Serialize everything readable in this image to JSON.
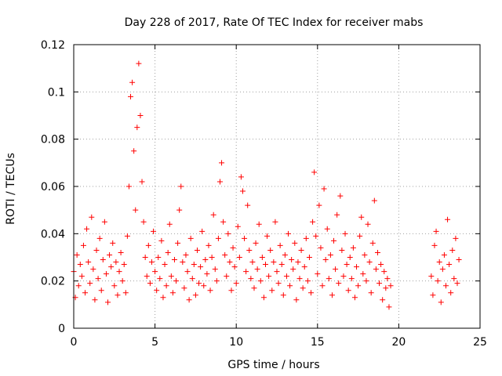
{
  "chart_data": {
    "type": "scatter",
    "title": "Day 228 of 2017, Rate Of TEC Index for receiver mabs",
    "xlabel": "GPS time / hours",
    "ylabel": "ROTI / TECUs",
    "xlim": [
      0,
      25
    ],
    "ylim": [
      0,
      0.12
    ],
    "xticks": [
      0,
      5,
      10,
      15,
      20,
      25
    ],
    "xtick_labels": [
      "0",
      "5",
      "10",
      "15",
      "20",
      "25"
    ],
    "yticks": [
      0,
      0.02,
      0.04,
      0.06,
      0.08,
      0.1,
      0.12
    ],
    "ytick_labels": [
      "0",
      "0.02",
      "0.04",
      "0.06",
      "0.08",
      "0.1",
      "0.12"
    ],
    "grid": true,
    "marker": "+",
    "color": "#ff0000",
    "series": [
      {
        "points": [
          [
            0.0,
            0.024
          ],
          [
            0.1,
            0.013
          ],
          [
            0.2,
            0.031
          ],
          [
            0.3,
            0.018
          ],
          [
            0.4,
            0.027
          ],
          [
            0.5,
            0.022
          ],
          [
            0.6,
            0.035
          ],
          [
            0.7,
            0.015
          ],
          [
            0.8,
            0.042
          ],
          [
            0.9,
            0.028
          ],
          [
            1.0,
            0.019
          ],
          [
            1.1,
            0.047
          ],
          [
            1.2,
            0.025
          ],
          [
            1.3,
            0.012
          ],
          [
            1.4,
            0.033
          ],
          [
            1.5,
            0.021
          ],
          [
            1.6,
            0.038
          ],
          [
            1.7,
            0.016
          ],
          [
            1.8,
            0.029
          ],
          [
            1.9,
            0.045
          ],
          [
            2.0,
            0.023
          ],
          [
            2.1,
            0.011
          ],
          [
            2.2,
            0.031
          ],
          [
            2.3,
            0.026
          ],
          [
            2.4,
            0.036
          ],
          [
            2.5,
            0.018
          ],
          [
            2.6,
            0.028
          ],
          [
            2.7,
            0.014
          ],
          [
            2.8,
            0.024
          ],
          [
            2.9,
            0.032
          ],
          [
            3.0,
            0.02
          ],
          [
            3.1,
            0.027
          ],
          [
            3.2,
            0.015
          ],
          [
            3.3,
            0.039
          ],
          [
            3.4,
            0.06
          ],
          [
            3.5,
            0.098
          ],
          [
            3.6,
            0.104
          ],
          [
            3.7,
            0.075
          ],
          [
            3.8,
            0.05
          ],
          [
            3.9,
            0.085
          ],
          [
            4.0,
            0.112
          ],
          [
            4.1,
            0.09
          ],
          [
            4.2,
            0.062
          ],
          [
            4.3,
            0.045
          ],
          [
            4.4,
            0.03
          ],
          [
            4.5,
            0.022
          ],
          [
            4.6,
            0.035
          ],
          [
            4.7,
            0.019
          ],
          [
            4.8,
            0.028
          ],
          [
            4.9,
            0.041
          ],
          [
            5.0,
            0.024
          ],
          [
            5.1,
            0.016
          ],
          [
            5.2,
            0.03
          ],
          [
            5.3,
            0.021
          ],
          [
            5.4,
            0.037
          ],
          [
            5.5,
            0.013
          ],
          [
            5.6,
            0.027
          ],
          [
            5.7,
            0.018
          ],
          [
            5.8,
            0.032
          ],
          [
            5.9,
            0.044
          ],
          [
            6.0,
            0.022
          ],
          [
            6.1,
            0.015
          ],
          [
            6.2,
            0.029
          ],
          [
            6.3,
            0.02
          ],
          [
            6.4,
            0.036
          ],
          [
            6.5,
            0.05
          ],
          [
            6.6,
            0.06
          ],
          [
            6.7,
            0.028
          ],
          [
            6.8,
            0.017
          ],
          [
            6.9,
            0.031
          ],
          [
            7.0,
            0.024
          ],
          [
            7.1,
            0.012
          ],
          [
            7.2,
            0.038
          ],
          [
            7.3,
            0.021
          ],
          [
            7.4,
            0.027
          ],
          [
            7.5,
            0.014
          ],
          [
            7.6,
            0.033
          ],
          [
            7.7,
            0.019
          ],
          [
            7.8,
            0.026
          ],
          [
            7.9,
            0.041
          ],
          [
            8.0,
            0.018
          ],
          [
            8.1,
            0.029
          ],
          [
            8.2,
            0.023
          ],
          [
            8.3,
            0.035
          ],
          [
            8.4,
            0.016
          ],
          [
            8.5,
            0.03
          ],
          [
            8.6,
            0.048
          ],
          [
            8.7,
            0.025
          ],
          [
            8.8,
            0.02
          ],
          [
            8.9,
            0.038
          ],
          [
            9.0,
            0.062
          ],
          [
            9.1,
            0.07
          ],
          [
            9.2,
            0.045
          ],
          [
            9.3,
            0.031
          ],
          [
            9.4,
            0.022
          ],
          [
            9.5,
            0.04
          ],
          [
            9.6,
            0.028
          ],
          [
            9.7,
            0.016
          ],
          [
            9.8,
            0.034
          ],
          [
            9.9,
            0.026
          ],
          [
            10.0,
            0.019
          ],
          [
            10.1,
            0.043
          ],
          [
            10.2,
            0.03
          ],
          [
            10.3,
            0.064
          ],
          [
            10.4,
            0.058
          ],
          [
            10.5,
            0.038
          ],
          [
            10.6,
            0.024
          ],
          [
            10.7,
            0.052
          ],
          [
            10.8,
            0.033
          ],
          [
            10.9,
            0.021
          ],
          [
            11.0,
            0.028
          ],
          [
            11.1,
            0.017
          ],
          [
            11.2,
            0.036
          ],
          [
            11.3,
            0.025
          ],
          [
            11.4,
            0.044
          ],
          [
            11.5,
            0.02
          ],
          [
            11.6,
            0.03
          ],
          [
            11.7,
            0.013
          ],
          [
            11.8,
            0.027
          ],
          [
            11.9,
            0.039
          ],
          [
            12.0,
            0.022
          ],
          [
            12.1,
            0.033
          ],
          [
            12.2,
            0.016
          ],
          [
            12.3,
            0.028
          ],
          [
            12.4,
            0.045
          ],
          [
            12.5,
            0.024
          ],
          [
            12.6,
            0.019
          ],
          [
            12.7,
            0.035
          ],
          [
            12.8,
            0.027
          ],
          [
            12.9,
            0.014
          ],
          [
            13.0,
            0.031
          ],
          [
            13.1,
            0.022
          ],
          [
            13.2,
            0.04
          ],
          [
            13.3,
            0.018
          ],
          [
            13.4,
            0.029
          ],
          [
            13.5,
            0.025
          ],
          [
            13.6,
            0.036
          ],
          [
            13.7,
            0.012
          ],
          [
            13.8,
            0.028
          ],
          [
            13.9,
            0.021
          ],
          [
            14.0,
            0.033
          ],
          [
            14.1,
            0.017
          ],
          [
            14.2,
            0.026
          ],
          [
            14.3,
            0.038
          ],
          [
            14.4,
            0.02
          ],
          [
            14.5,
            0.03
          ],
          [
            14.6,
            0.015
          ],
          [
            14.7,
            0.045
          ],
          [
            14.8,
            0.066
          ],
          [
            14.9,
            0.039
          ],
          [
            15.0,
            0.023
          ],
          [
            15.1,
            0.052
          ],
          [
            15.2,
            0.034
          ],
          [
            15.3,
            0.018
          ],
          [
            15.4,
            0.059
          ],
          [
            15.5,
            0.029
          ],
          [
            15.6,
            0.042
          ],
          [
            15.7,
            0.021
          ],
          [
            15.8,
            0.031
          ],
          [
            15.9,
            0.014
          ],
          [
            16.0,
            0.037
          ],
          [
            16.1,
            0.025
          ],
          [
            16.2,
            0.048
          ],
          [
            16.3,
            0.019
          ],
          [
            16.4,
            0.056
          ],
          [
            16.5,
            0.033
          ],
          [
            16.6,
            0.022
          ],
          [
            16.7,
            0.04
          ],
          [
            16.8,
            0.027
          ],
          [
            16.9,
            0.016
          ],
          [
            17.0,
            0.03
          ],
          [
            17.1,
            0.021
          ],
          [
            17.2,
            0.034
          ],
          [
            17.3,
            0.013
          ],
          [
            17.4,
            0.026
          ],
          [
            17.5,
            0.018
          ],
          [
            17.6,
            0.039
          ],
          [
            17.7,
            0.047
          ],
          [
            17.8,
            0.023
          ],
          [
            17.9,
            0.031
          ],
          [
            18.0,
            0.02
          ],
          [
            18.1,
            0.044
          ],
          [
            18.2,
            0.028
          ],
          [
            18.3,
            0.015
          ],
          [
            18.4,
            0.036
          ],
          [
            18.5,
            0.054
          ],
          [
            18.6,
            0.025
          ],
          [
            18.7,
            0.032
          ],
          [
            18.8,
            0.019
          ],
          [
            18.9,
            0.027
          ],
          [
            19.0,
            0.012
          ],
          [
            19.1,
            0.024
          ],
          [
            19.2,
            0.017
          ],
          [
            19.3,
            0.021
          ],
          [
            19.4,
            0.009
          ],
          [
            19.5,
            0.018
          ],
          [
            22.0,
            0.022
          ],
          [
            22.1,
            0.014
          ],
          [
            22.2,
            0.035
          ],
          [
            22.3,
            0.041
          ],
          [
            22.4,
            0.02
          ],
          [
            22.5,
            0.028
          ],
          [
            22.6,
            0.011
          ],
          [
            22.7,
            0.025
          ],
          [
            22.8,
            0.031
          ],
          [
            22.9,
            0.018
          ],
          [
            23.0,
            0.046
          ],
          [
            23.1,
            0.027
          ],
          [
            23.2,
            0.015
          ],
          [
            23.3,
            0.033
          ],
          [
            23.4,
            0.021
          ],
          [
            23.5,
            0.038
          ],
          [
            23.6,
            0.019
          ],
          [
            23.7,
            0.029
          ]
        ]
      }
    ]
  }
}
